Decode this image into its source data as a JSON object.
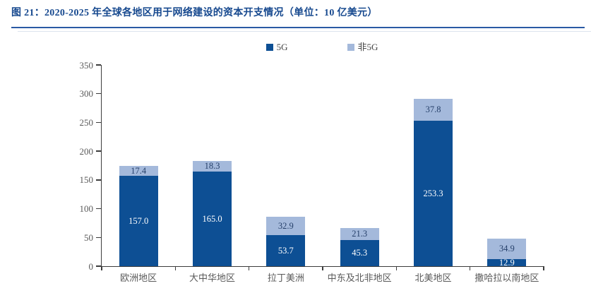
{
  "figure": {
    "title": "图 21：2020-2025 年全球各地区用于网络建设的资本开支情况（单位：10 亿美元）"
  },
  "chart_data": {
    "type": "bar",
    "stacked": true,
    "title": "图 21：2020-2025 年全球各地区用于网络建设的资本开支情况（单位：10 亿美元）",
    "unit": "10 亿美元",
    "categories": [
      "欧洲地区",
      "大中华地区",
      "拉丁美洲",
      "中东及北非地区",
      "北美地区",
      "撒哈拉以南地区"
    ],
    "series": [
      {
        "name": "5G",
        "color": "#0d4f94",
        "label_color": "#ffffff",
        "values": [
          157.0,
          165.0,
          53.7,
          45.3,
          253.3,
          12.9
        ]
      },
      {
        "name": "非5G",
        "color": "#a4b9db",
        "label_color": "#27416b",
        "values": [
          17.4,
          18.3,
          32.9,
          21.3,
          37.8,
          34.9
        ]
      }
    ],
    "ylim": [
      0,
      350
    ],
    "yticks": [
      0,
      50,
      100,
      150,
      200,
      250,
      300,
      350
    ],
    "label_decimals": 1,
    "grid": false,
    "legend_position": "top-center",
    "axis_color": "#3c3c3c",
    "tick_label_color": "#595959"
  }
}
